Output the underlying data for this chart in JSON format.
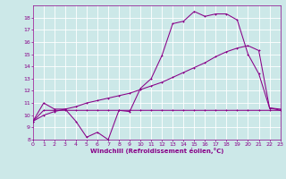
{
  "xlabel": "Windchill (Refroidissement éolien,°C)",
  "bg_color": "#cce8e8",
  "grid_color": "#ffffff",
  "line_color": "#880088",
  "xmin": 0,
  "xmax": 23,
  "ymin": 8,
  "ymax": 19,
  "yticks": [
    8,
    9,
    10,
    11,
    12,
    13,
    14,
    15,
    16,
    17,
    18
  ],
  "line1_x": [
    0,
    1,
    2,
    3,
    4,
    5,
    6,
    7,
    8,
    9,
    10,
    11,
    12,
    13,
    14,
    15,
    16,
    17,
    18,
    19,
    20,
    21,
    22,
    23
  ],
  "line1_y": [
    9.5,
    11.0,
    10.5,
    10.5,
    9.5,
    8.2,
    8.6,
    8.0,
    10.4,
    10.3,
    12.2,
    13.0,
    14.9,
    17.5,
    17.7,
    18.5,
    18.1,
    18.3,
    18.3,
    17.8,
    15.0,
    13.4,
    10.6,
    10.5
  ],
  "line2_x": [
    0,
    1,
    2,
    3,
    4,
    5,
    6,
    7,
    8,
    9,
    10,
    11,
    12,
    13,
    14,
    15,
    16,
    17,
    18,
    19,
    20,
    21,
    22,
    23
  ],
  "line2_y": [
    9.5,
    10.4,
    10.4,
    10.4,
    10.4,
    10.4,
    10.4,
    10.4,
    10.4,
    10.4,
    10.4,
    10.4,
    10.4,
    10.4,
    10.4,
    10.4,
    10.4,
    10.4,
    10.4,
    10.4,
    10.4,
    10.4,
    10.4,
    10.4
  ],
  "line3_x": [
    0,
    1,
    2,
    3,
    4,
    5,
    6,
    7,
    8,
    9,
    10,
    11,
    12,
    13,
    14,
    15,
    16,
    17,
    18,
    19,
    20,
    21,
    22,
    23
  ],
  "line3_y": [
    9.5,
    10.0,
    10.3,
    10.5,
    10.7,
    11.0,
    11.2,
    11.4,
    11.6,
    11.8,
    12.1,
    12.4,
    12.7,
    13.1,
    13.5,
    13.9,
    14.3,
    14.8,
    15.2,
    15.5,
    15.7,
    15.3,
    10.6,
    10.4
  ]
}
